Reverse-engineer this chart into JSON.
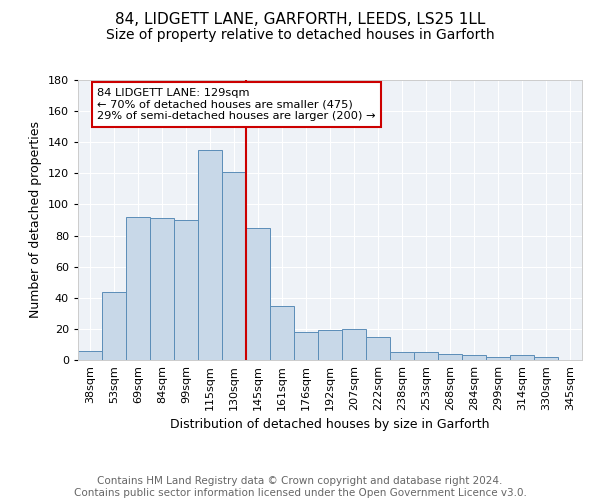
{
  "title": "84, LIDGETT LANE, GARFORTH, LEEDS, LS25 1LL",
  "subtitle": "Size of property relative to detached houses in Garforth",
  "xlabel": "Distribution of detached houses by size in Garforth",
  "ylabel": "Number of detached properties",
  "bar_labels": [
    "38sqm",
    "53sqm",
    "69sqm",
    "84sqm",
    "99sqm",
    "115sqm",
    "130sqm",
    "145sqm",
    "161sqm",
    "176sqm",
    "192sqm",
    "207sqm",
    "222sqm",
    "238sqm",
    "253sqm",
    "268sqm",
    "284sqm",
    "299sqm",
    "314sqm",
    "330sqm",
    "345sqm"
  ],
  "bar_values": [
    6,
    44,
    92,
    91,
    90,
    135,
    121,
    85,
    35,
    18,
    19,
    20,
    15,
    5,
    5,
    4,
    3,
    2,
    3,
    2,
    0
  ],
  "bar_color": "#c8d8e8",
  "bar_edge_color": "#5b8db8",
  "vline_x_index": 6,
  "vline_color": "#cc0000",
  "annotation_text": "84 LIDGETT LANE: 129sqm\n← 70% of detached houses are smaller (475)\n29% of semi-detached houses are larger (200) →",
  "annotation_box_color": "#ffffff",
  "annotation_box_edge": "#cc0000",
  "ylim": [
    0,
    180
  ],
  "yticks": [
    0,
    20,
    40,
    60,
    80,
    100,
    120,
    140,
    160,
    180
  ],
  "footer_text": "Contains HM Land Registry data © Crown copyright and database right 2024.\nContains public sector information licensed under the Open Government Licence v3.0.",
  "background_color": "#eef2f7",
  "grid_color": "#ffffff",
  "title_fontsize": 11,
  "subtitle_fontsize": 10,
  "axis_label_fontsize": 9,
  "tick_fontsize": 8,
  "footer_fontsize": 7.5
}
